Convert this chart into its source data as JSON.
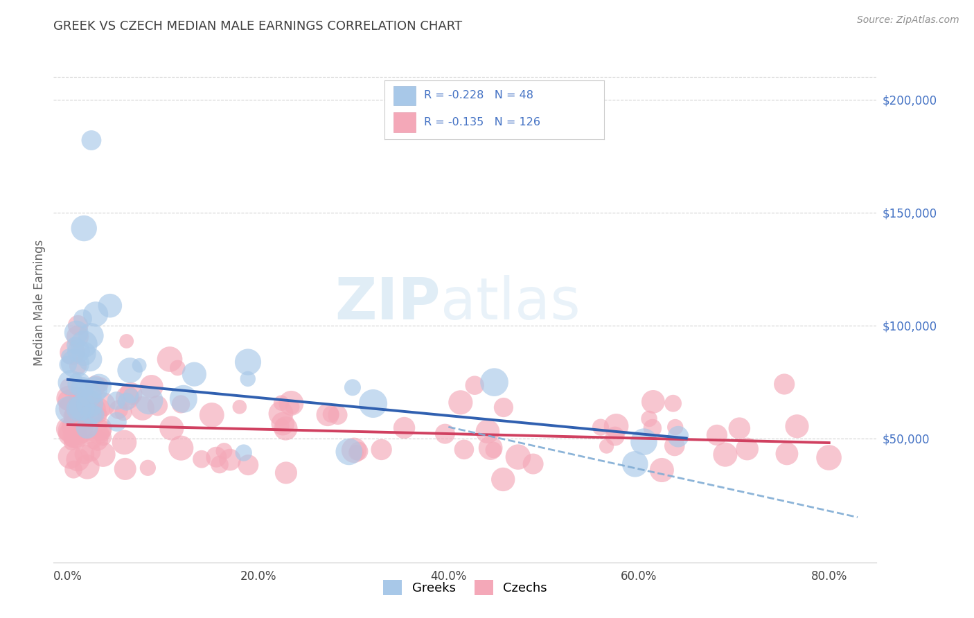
{
  "title": "GREEK VS CZECH MEDIAN MALE EARNINGS CORRELATION CHART",
  "source": "Source: ZipAtlas.com",
  "ylabel": "Median Male Earnings",
  "xlim": [
    -1.5,
    85.0
  ],
  "ylim": [
    -5000,
    225000
  ],
  "ytick_vals": [
    50000,
    100000,
    150000,
    200000
  ],
  "ytick_labels": [
    "$50,000",
    "$100,000",
    "$150,000",
    "$200,000"
  ],
  "xtick_vals": [
    0,
    20,
    40,
    60,
    80
  ],
  "xtick_labels": [
    "0.0%",
    "20.0%",
    "40.0%",
    "60.0%",
    "80.0%"
  ],
  "greek_color": "#a8c8e8",
  "czech_color": "#f4a8b8",
  "trend_greek_color": "#3060b0",
  "trend_czech_color": "#d04060",
  "dashed_color": "#80acd4",
  "right_label_color": "#4472c4",
  "bg_color": "#ffffff",
  "grid_color": "#c8c8c8",
  "title_color": "#404040",
  "source_color": "#909090",
  "greek_R": -0.228,
  "greek_N": 48,
  "czech_R": -0.135,
  "czech_N": 126,
  "label_greek": "Greeks",
  "label_czech": "Czechs",
  "greek_trend_x0": 0,
  "greek_trend_x1": 65,
  "greek_trend_y0": 76000,
  "greek_trend_y1": 50000,
  "czech_trend_x0": 0,
  "czech_trend_x1": 80,
  "czech_trend_y0": 56000,
  "czech_trend_y1": 48000,
  "dashed_x0": 40,
  "dashed_x1": 83,
  "dashed_y0": 55000,
  "dashed_y1": 15000
}
